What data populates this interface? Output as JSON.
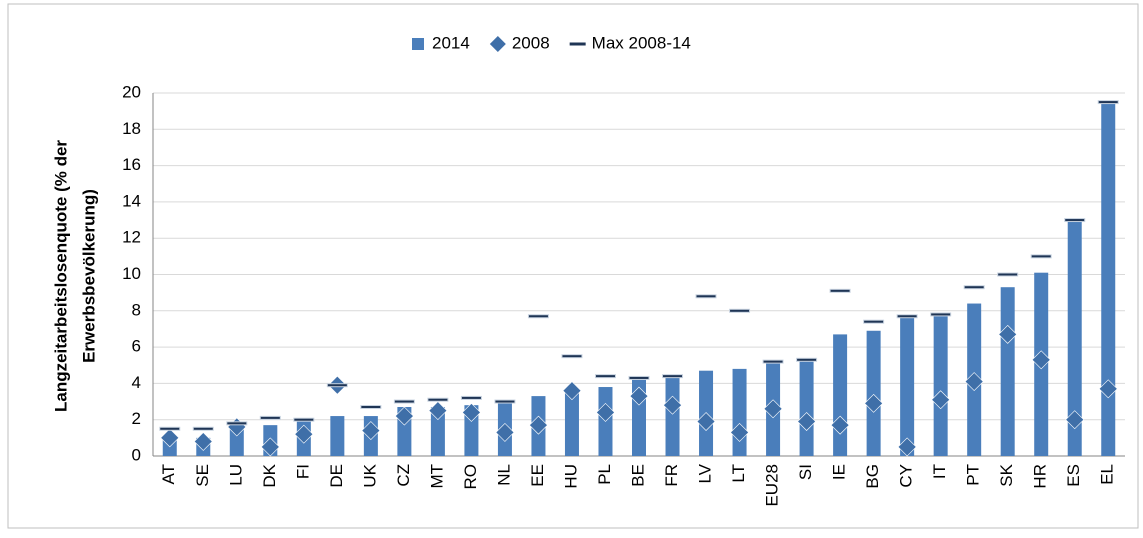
{
  "chart_data": {
    "type": "bar",
    "ylabel": [
      "Langzeitarbeitslosenquote  (% der",
      "Erwerbsbevölkerung)"
    ],
    "categories": [
      "AT",
      "SE",
      "LU",
      "DK",
      "FI",
      "DE",
      "UK",
      "CZ",
      "MT",
      "RO",
      "NL",
      "EE",
      "HU",
      "PL",
      "BE",
      "FR",
      "LV",
      "LT",
      "EU28",
      "SI",
      "IE",
      "BG",
      "CY",
      "IT",
      "PT",
      "SK",
      "HR",
      "ES",
      "EL"
    ],
    "series": [
      {
        "name": "2014",
        "kind": "bar",
        "color": "#4a7ebb",
        "values": [
          1.1,
          1.0,
          1.6,
          1.7,
          1.9,
          2.2,
          2.2,
          2.7,
          2.7,
          2.8,
          3.0,
          3.3,
          3.7,
          3.8,
          4.3,
          4.4,
          4.7,
          4.8,
          5.1,
          5.3,
          6.7,
          6.9,
          7.7,
          7.8,
          8.4,
          9.3,
          10.1,
          12.9,
          19.5
        ]
      },
      {
        "name": "2008",
        "kind": "diamond",
        "color": "#3f6fa8",
        "values": [
          1.0,
          0.8,
          1.6,
          0.5,
          1.2,
          3.9,
          1.4,
          2.2,
          2.5,
          2.4,
          1.3,
          1.7,
          3.6,
          2.4,
          3.3,
          2.8,
          1.9,
          1.3,
          2.6,
          1.9,
          1.7,
          2.9,
          0.5,
          3.1,
          4.1,
          6.7,
          5.3,
          2.0,
          3.7
        ]
      },
      {
        "name": "Max 2008-14",
        "kind": "dash",
        "color": "#1f3555",
        "values": [
          1.5,
          1.5,
          1.8,
          2.1,
          2.0,
          3.9,
          2.7,
          3.0,
          3.1,
          3.2,
          3.0,
          7.7,
          5.5,
          4.4,
          4.3,
          4.4,
          8.8,
          8.0,
          5.2,
          5.3,
          9.1,
          7.4,
          7.7,
          7.8,
          9.3,
          10.0,
          11.0,
          13.0,
          19.5
        ]
      }
    ],
    "ylim": [
      0,
      20
    ],
    "yticks": [
      0,
      2,
      4,
      6,
      8,
      10,
      12,
      14,
      16,
      18,
      20
    ],
    "grid": true,
    "legend": "top"
  }
}
